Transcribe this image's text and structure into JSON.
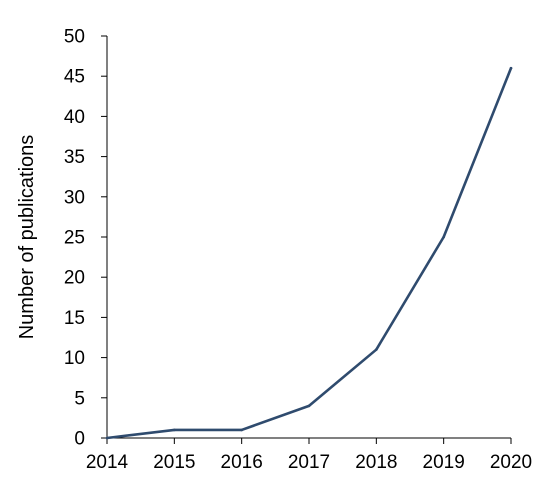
{
  "chart_data": {
    "type": "line",
    "title": "",
    "xlabel": "",
    "ylabel": "Number of publications",
    "categories": [
      "2014",
      "2015",
      "2016",
      "2017",
      "2018",
      "2019",
      "2020"
    ],
    "series": [
      {
        "values": [
          0,
          1,
          1,
          4,
          11,
          25,
          46
        ]
      }
    ],
    "ylim": [
      0,
      50
    ],
    "yticks": [
      "0",
      "5",
      "10",
      "15",
      "20",
      "25",
      "30",
      "35",
      "40",
      "45",
      "50"
    ],
    "grid": false,
    "legend": "none",
    "colors": {
      "line": "#2f4b6e",
      "axis": "#000000"
    }
  }
}
